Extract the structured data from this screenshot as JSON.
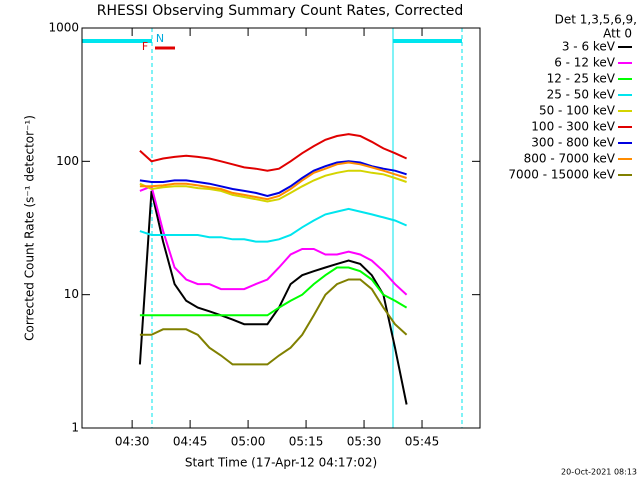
{
  "chart_data": {
    "type": "line",
    "title": "RHESSI Observing Summary Count Rates, Corrected",
    "xlabel": "Start Time (17-Apr-12 04:17:02)",
    "ylabel": "Corrected Count Rate (s⁻¹ detector⁻¹)",
    "legend_header": [
      "Det 1,3,5,6,9,",
      "Att 0"
    ],
    "annotations": [
      "F",
      "N"
    ],
    "footer": "20-Oct-2021 08:13",
    "log_y": true,
    "legend": "right",
    "xlim": [
      257.03,
      360
    ],
    "xticks": [
      {
        "value": 270,
        "label": "04:30"
      },
      {
        "value": 285,
        "label": "04:45"
      },
      {
        "value": 300,
        "label": "05:00"
      },
      {
        "value": 315,
        "label": "05:15"
      },
      {
        "value": 330,
        "label": "05:30"
      },
      {
        "value": 345,
        "label": "05:45"
      }
    ],
    "ylim": [
      1,
      1000
    ],
    "yticks": [
      1,
      10,
      100,
      1000
    ],
    "x": [
      272,
      275,
      278,
      281,
      284,
      287,
      290,
      293,
      296,
      299,
      302,
      305,
      308,
      311,
      314,
      317,
      320,
      323,
      326,
      329,
      332,
      335,
      338,
      341
    ],
    "series": [
      {
        "name": "3 - 6 keV",
        "color": "#000000",
        "values": [
          3,
          60,
          25,
          12,
          9,
          8,
          7.5,
          7,
          6.5,
          6,
          6,
          6,
          8,
          12,
          14,
          15,
          16,
          17,
          18,
          17,
          14,
          10,
          4,
          1.5
        ]
      },
      {
        "name": "6 - 12 keV",
        "color": "#ff00ff",
        "values": [
          60,
          65,
          30,
          16,
          13,
          12,
          12,
          11,
          11,
          11,
          12,
          13,
          16,
          20,
          22,
          22,
          20,
          20,
          21,
          20,
          18,
          15,
          12,
          10
        ]
      },
      {
        "name": "12 - 25 keV",
        "color": "#00ff00",
        "values": [
          7,
          7,
          7,
          7,
          7,
          7,
          7,
          7,
          7,
          7,
          7,
          7,
          8,
          9,
          10,
          12,
          14,
          16,
          16,
          15,
          13,
          10,
          9,
          8
        ]
      },
      {
        "name": "25 - 50 keV",
        "color": "#00e5ee",
        "values": [
          30,
          28,
          28,
          28,
          28,
          28,
          27,
          27,
          26,
          26,
          25,
          25,
          26,
          28,
          32,
          36,
          40,
          42,
          44,
          42,
          40,
          38,
          36,
          33
        ]
      },
      {
        "name": "50 - 100 keV",
        "color": "#d4d400",
        "values": [
          68,
          62,
          64,
          65,
          65,
          63,
          62,
          60,
          56,
          54,
          52,
          50,
          52,
          58,
          65,
          72,
          78,
          82,
          85,
          85,
          82,
          80,
          75,
          70
        ]
      },
      {
        "name": "100 - 300 keV",
        "color": "#e00000",
        "values": [
          120,
          100,
          105,
          108,
          110,
          108,
          105,
          100,
          95,
          90,
          88,
          85,
          88,
          100,
          115,
          130,
          145,
          155,
          160,
          155,
          140,
          125,
          115,
          105
        ]
      },
      {
        "name": "300 - 800 keV",
        "color": "#0000e0",
        "values": [
          72,
          70,
          70,
          72,
          72,
          70,
          68,
          65,
          62,
          60,
          58,
          55,
          58,
          65,
          75,
          85,
          92,
          98,
          100,
          98,
          92,
          88,
          85,
          80
        ]
      },
      {
        "name": "800 - 7000 keV",
        "color": "#ff8c00",
        "values": [
          65,
          65,
          66,
          68,
          68,
          66,
          64,
          62,
          58,
          56,
          54,
          52,
          55,
          62,
          72,
          82,
          88,
          95,
          98,
          95,
          90,
          85,
          80,
          75
        ]
      },
      {
        "name": "7000 - 15000 keV",
        "color": "#808000",
        "values": [
          5,
          5,
          5.5,
          5.5,
          5.5,
          5,
          4,
          3.5,
          3,
          3,
          3,
          3,
          3.5,
          4,
          5,
          7,
          10,
          12,
          13,
          13,
          11,
          8,
          6,
          5
        ]
      }
    ]
  }
}
